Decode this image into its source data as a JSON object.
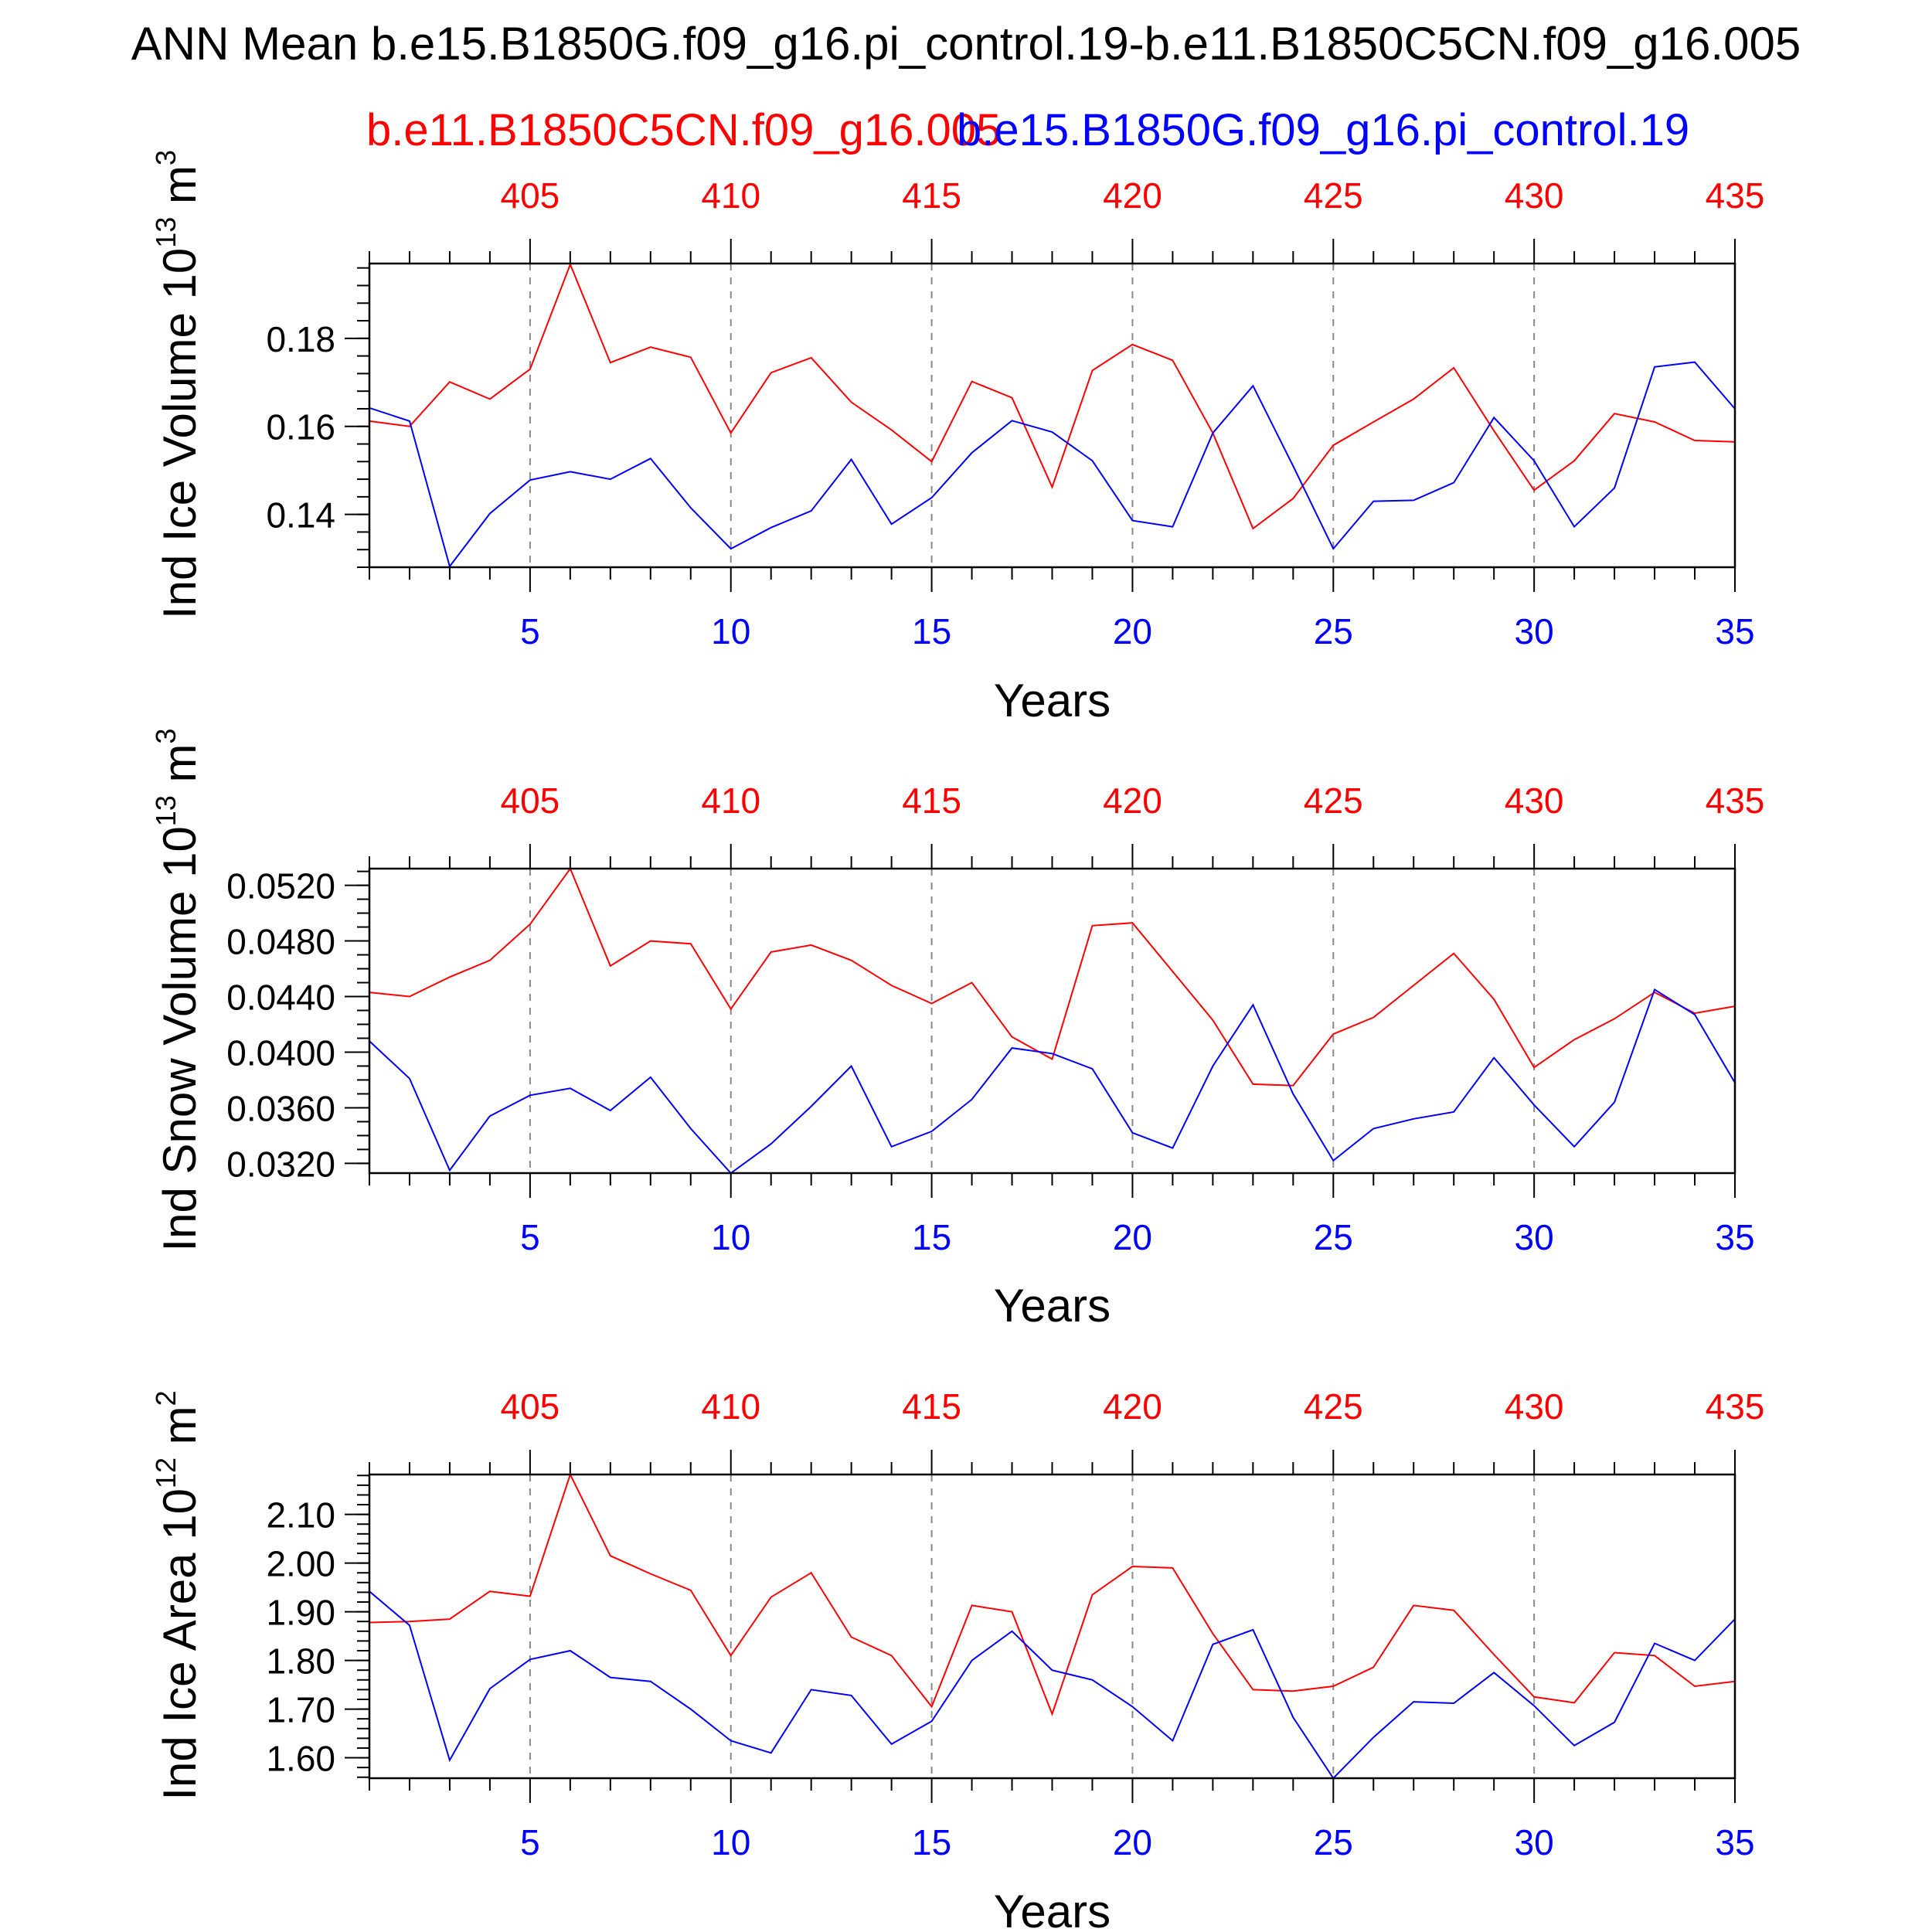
{
  "title": "ANN Mean b.e15.B1850G.f09_g16.pi_control.19-b.e11.B1850C5CN.f09_g16.005",
  "legend": {
    "red_label": "b.e11.B1850C5CN.f09_g16.005",
    "blue_label": "b.e15.B1850G.f09_g16.pi_control.19"
  },
  "colors": {
    "case_red": "#ff0000",
    "case_blue": "#0000ff",
    "grid": "#888888"
  },
  "chart_data": [
    {
      "type": "line",
      "ylabel": "Ind Ice Volume 10",
      "ylabel_exp": "13",
      "ylabel_unit": " m",
      "ylabel_unit_exp": "3",
      "xlabel": "Years",
      "xlim": [
        1,
        35
      ],
      "ylim": [
        0.128,
        0.197
      ],
      "yticks": [
        0.14,
        0.16,
        0.18
      ],
      "ytick_labels": [
        "0.14",
        "0.16",
        "0.18"
      ],
      "yminor_step": 0.004,
      "bottom_ticks": [
        5,
        10,
        15,
        20,
        25,
        30,
        35
      ],
      "bottom_tick_labels": [
        "5",
        "10",
        "15",
        "20",
        "25",
        "30",
        "35"
      ],
      "top_ticks": [
        5,
        10,
        15,
        20,
        25,
        30,
        35
      ],
      "top_tick_labels": [
        "405",
        "410",
        "415",
        "420",
        "425",
        "430",
        "435"
      ],
      "grid": "vertical dashed at major x ticks",
      "x": [
        1,
        2,
        3,
        4,
        5,
        6,
        7,
        8,
        9,
        10,
        11,
        12,
        13,
        14,
        15,
        16,
        17,
        18,
        19,
        20,
        21,
        22,
        23,
        24,
        25,
        26,
        27,
        28,
        29,
        30,
        31,
        32,
        33,
        34,
        35
      ],
      "series": [
        {
          "name": "b.e11.B1850C5CN.f09_g16.005",
          "color": "#ff0000",
          "values": [
            0.1612,
            0.16,
            0.1701,
            0.1662,
            0.173,
            0.1968,
            0.1745,
            0.178,
            0.1757,
            0.1585,
            0.1722,
            0.1756,
            0.1655,
            0.1592,
            0.152,
            0.1702,
            0.1665,
            0.1462,
            0.1727,
            0.1786,
            0.175,
            0.1585,
            0.1368,
            0.1436,
            0.1557,
            0.161,
            0.1662,
            0.1733,
            0.159,
            0.1455,
            0.1522,
            0.1629,
            0.161,
            0.1568,
            0.1565
          ]
        },
        {
          "name": "b.e15.B1850G.f09_g16.pi_control.19",
          "color": "#0000ff",
          "values": [
            0.1642,
            0.1612,
            0.1282,
            0.1402,
            0.1478,
            0.1497,
            0.148,
            0.1527,
            0.1415,
            0.1322,
            0.137,
            0.1408,
            0.1525,
            0.1378,
            0.1438,
            0.154,
            0.1613,
            0.1587,
            0.1522,
            0.1386,
            0.1372,
            0.1585,
            0.1692,
            0.151,
            0.1322,
            0.143,
            0.1432,
            0.1472,
            0.162,
            0.1522,
            0.1372,
            0.146,
            0.1735,
            0.1746,
            0.164
          ]
        }
      ]
    },
    {
      "type": "line",
      "ylabel": "Ind Snow Volume 10",
      "ylabel_exp": "13",
      "ylabel_unit": " m",
      "ylabel_unit_exp": "3",
      "xlabel": "Years",
      "xlim": [
        1,
        35
      ],
      "ylim": [
        0.0313,
        0.0532
      ],
      "yticks": [
        0.032,
        0.036,
        0.04,
        0.044,
        0.048,
        0.052
      ],
      "ytick_labels": [
        "0.0320",
        "0.0360",
        "0.0400",
        "0.0440",
        "0.0480",
        "0.0520"
      ],
      "yminor_step": 0.001,
      "bottom_ticks": [
        5,
        10,
        15,
        20,
        25,
        30,
        35
      ],
      "bottom_tick_labels": [
        "5",
        "10",
        "15",
        "20",
        "25",
        "30",
        "35"
      ],
      "top_ticks": [
        5,
        10,
        15,
        20,
        25,
        30,
        35
      ],
      "top_tick_labels": [
        "405",
        "410",
        "415",
        "420",
        "425",
        "430",
        "435"
      ],
      "grid": "vertical dashed at major x ticks",
      "x": [
        1,
        2,
        3,
        4,
        5,
        6,
        7,
        8,
        9,
        10,
        11,
        12,
        13,
        14,
        15,
        16,
        17,
        18,
        19,
        20,
        21,
        22,
        23,
        24,
        25,
        26,
        27,
        28,
        29,
        30,
        31,
        32,
        33,
        34,
        35
      ],
      "series": [
        {
          "name": "b.e11.B1850C5CN.f09_g16.005",
          "color": "#ff0000",
          "values": [
            0.0443,
            0.044,
            0.0454,
            0.0466,
            0.0492,
            0.0532,
            0.0462,
            0.048,
            0.0478,
            0.0431,
            0.0472,
            0.0477,
            0.0466,
            0.0448,
            0.0435,
            0.045,
            0.0411,
            0.0395,
            0.0491,
            0.0493,
            0.0458,
            0.0423,
            0.0377,
            0.0376,
            0.0413,
            0.0425,
            0.0448,
            0.0471,
            0.0438,
            0.0389,
            0.0409,
            0.0424,
            0.0443,
            0.0428,
            0.0433
          ]
        },
        {
          "name": "b.e15.B1850G.f09_g16.pi_control.19",
          "color": "#0000ff",
          "values": [
            0.0408,
            0.0381,
            0.0315,
            0.0354,
            0.0369,
            0.0374,
            0.0358,
            0.0382,
            0.0345,
            0.0313,
            0.0334,
            0.0361,
            0.039,
            0.0332,
            0.0343,
            0.0366,
            0.0403,
            0.0399,
            0.0388,
            0.0342,
            0.0331,
            0.039,
            0.0434,
            0.037,
            0.0322,
            0.0345,
            0.0352,
            0.0357,
            0.0396,
            0.0362,
            0.0332,
            0.0364,
            0.0445,
            0.0427,
            0.0378
          ]
        }
      ]
    },
    {
      "type": "line",
      "ylabel": "Ind Ice Area 10",
      "ylabel_exp": "12",
      "ylabel_unit": " m",
      "ylabel_unit_exp": "2",
      "xlabel": "Years",
      "xlim": [
        1,
        35
      ],
      "ylim": [
        1.558,
        2.182
      ],
      "yticks": [
        1.6,
        1.7,
        1.8,
        1.9,
        2.0,
        2.1
      ],
      "ytick_labels": [
        "1.60",
        "1.70",
        "1.80",
        "1.90",
        "2.00",
        "2.10"
      ],
      "yminor_step": 0.02,
      "bottom_ticks": [
        5,
        10,
        15,
        20,
        25,
        30,
        35
      ],
      "bottom_tick_labels": [
        "5",
        "10",
        "15",
        "20",
        "25",
        "30",
        "35"
      ],
      "top_ticks": [
        5,
        10,
        15,
        20,
        25,
        30,
        35
      ],
      "top_tick_labels": [
        "405",
        "410",
        "415",
        "420",
        "425",
        "430",
        "435"
      ],
      "grid": "vertical dashed at major x ticks",
      "x": [
        1,
        2,
        3,
        4,
        5,
        6,
        7,
        8,
        9,
        10,
        11,
        12,
        13,
        14,
        15,
        16,
        17,
        18,
        19,
        20,
        21,
        22,
        23,
        24,
        25,
        26,
        27,
        28,
        29,
        30,
        31,
        32,
        33,
        34,
        35
      ],
      "series": [
        {
          "name": "b.e11.B1850C5CN.f09_g16.005",
          "color": "#ff0000",
          "values": [
            1.878,
            1.88,
            1.885,
            1.942,
            1.932,
            2.182,
            2.015,
            1.978,
            1.944,
            1.81,
            1.93,
            1.98,
            1.848,
            1.81,
            1.705,
            1.913,
            1.9,
            1.69,
            1.935,
            1.993,
            1.99,
            1.855,
            1.74,
            1.737,
            1.747,
            1.786,
            1.913,
            1.903,
            1.812,
            1.725,
            1.713,
            1.816,
            1.81,
            1.747,
            1.757
          ]
        },
        {
          "name": "b.e15.B1850G.f09_g16.pi_control.19",
          "color": "#0000ff",
          "values": [
            1.942,
            1.872,
            1.595,
            1.742,
            1.802,
            1.82,
            1.765,
            1.757,
            1.7,
            1.635,
            1.61,
            1.74,
            1.728,
            1.628,
            1.675,
            1.8,
            1.86,
            1.78,
            1.76,
            1.705,
            1.635,
            1.833,
            1.863,
            1.683,
            1.558,
            1.642,
            1.715,
            1.712,
            1.775,
            1.707,
            1.625,
            1.673,
            1.835,
            1.8,
            1.885
          ]
        }
      ]
    }
  ]
}
